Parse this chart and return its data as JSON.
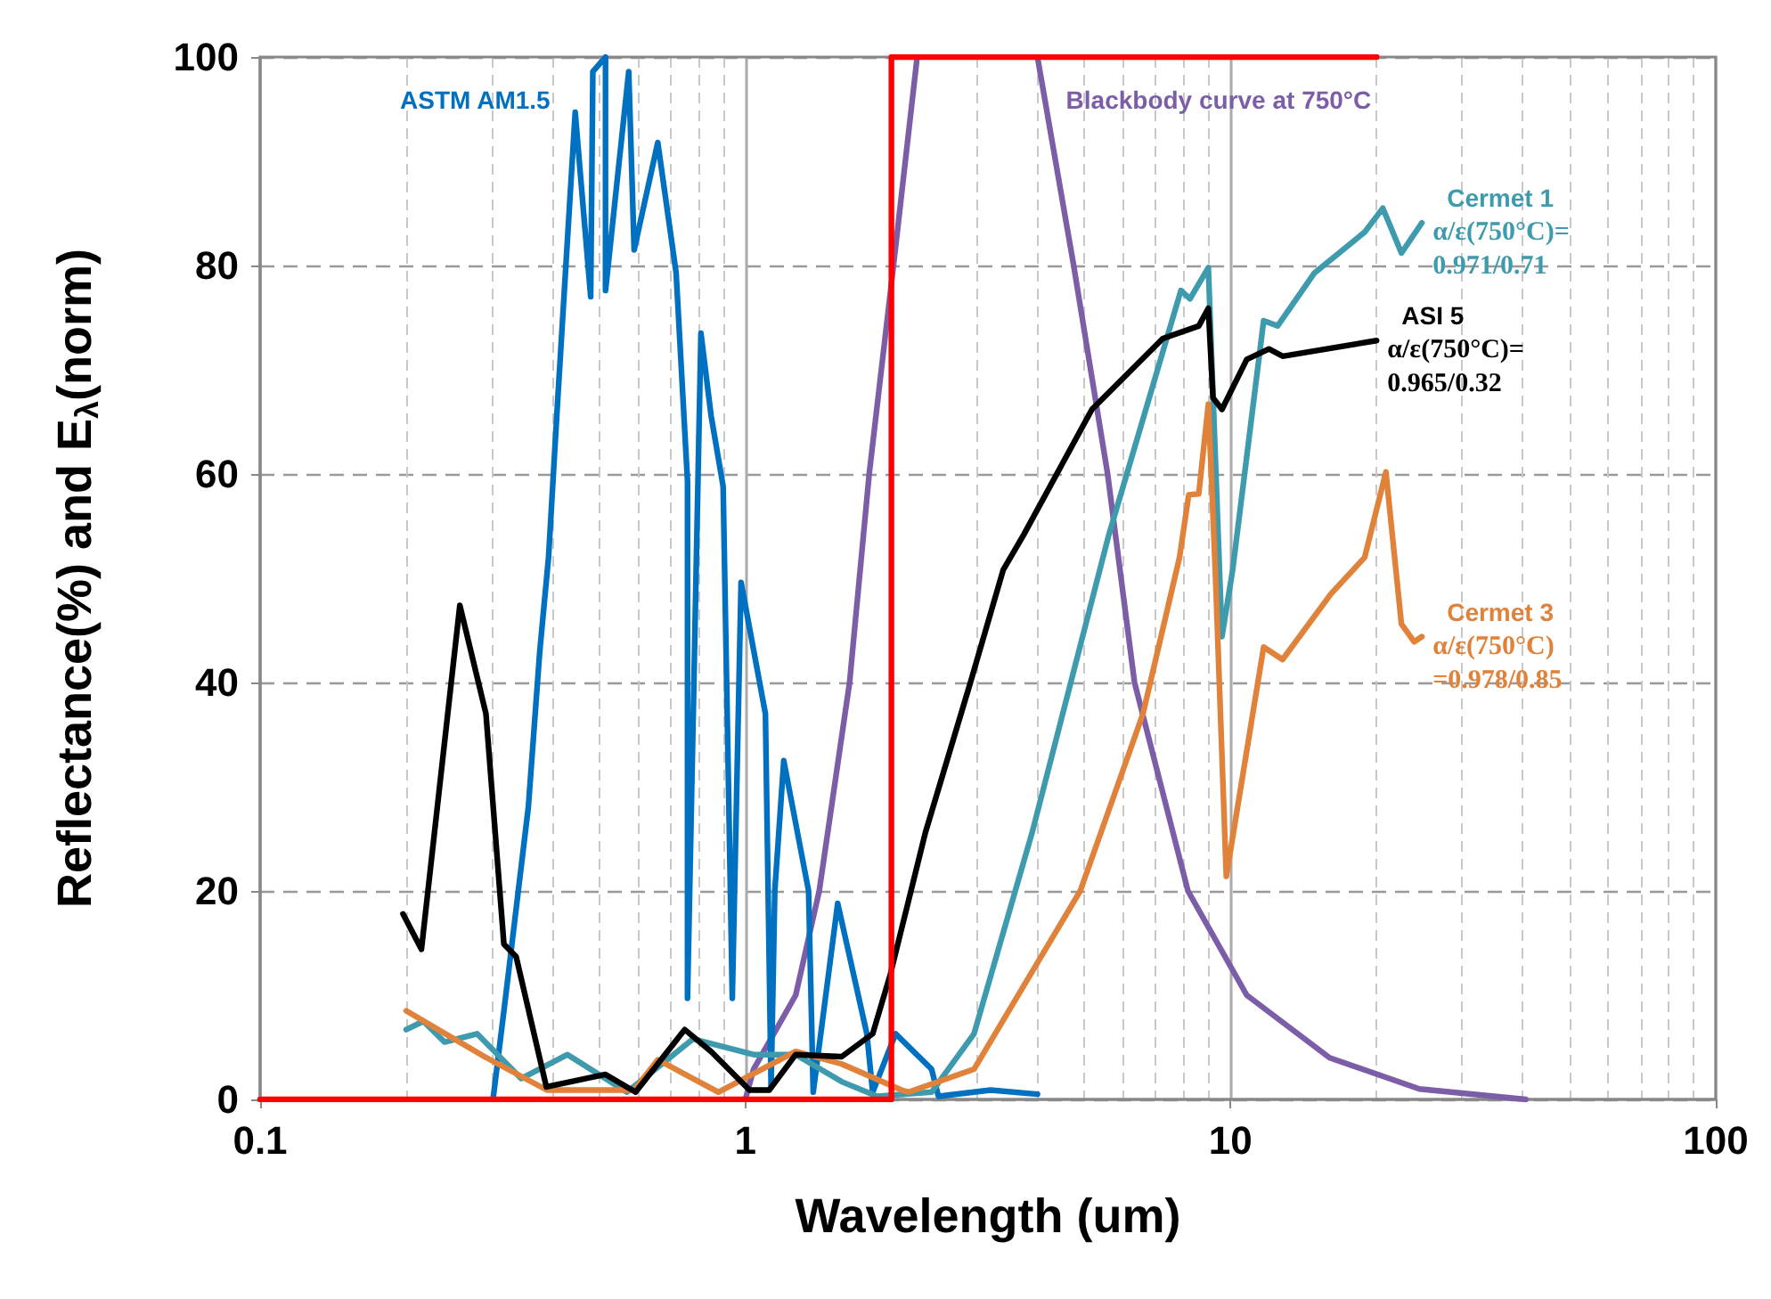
{
  "chart_data": {
    "type": "line",
    "xlabel": "Wavelength (um)",
    "ylabel": "Reflectance(%) and E$_{λ}$(norm)",
    "log": "x",
    "xlim": [
      0.1,
      100
    ],
    "xticks": [
      0.1,
      1,
      10,
      100
    ],
    "ylim": [
      0,
      100
    ],
    "yticks": [
      0,
      20,
      40,
      60,
      80,
      100
    ],
    "grid": true,
    "legend": false,
    "marker": "none",
    "line_style": "solid",
    "series": [
      {
        "name": "Blackbody curve at 750°C",
        "color": "#7b5ea7",
        "x": [
          1.0,
          1.04,
          1.27,
          1.42,
          1.64,
          1.8,
          2.02,
          2.26,
          3.0,
          4.0,
          4.75,
          5.58,
          6.34,
          8.17,
          10.8,
          16,
          24.5,
          40.6
        ],
        "values": [
          0,
          2.9,
          10,
          20,
          40,
          60,
          80,
          100,
          null,
          100,
          80,
          60,
          40,
          20,
          10,
          4,
          1,
          0
        ]
      },
      {
        "name": "ASTM AM1.5",
        "color": "#0070c0",
        "x": [
          0.302,
          0.318,
          0.357,
          0.377,
          0.393,
          0.41,
          0.446,
          0.48,
          0.485,
          0.515,
          0.515,
          0.575,
          0.59,
          0.66,
          0.72,
          0.76,
          0.76,
          0.81,
          0.85,
          0.9,
          0.94,
          0.98,
          1.1,
          1.13,
          1.15,
          1.2,
          1.35,
          1.38,
          1.55,
          1.78,
          1.83,
          2.04,
          2.42,
          2.5,
          3.2,
          4.0
        ],
        "values": [
          0,
          8.5,
          28,
          43,
          52,
          66.7,
          94.7,
          77,
          98.6,
          100,
          77.6,
          98.6,
          81.5,
          91.8,
          79.3,
          59.3,
          9.7,
          73.5,
          65.6,
          58.8,
          9.7,
          49.6,
          37,
          1.2,
          20,
          32.5,
          20,
          0.7,
          18.8,
          6.3,
          0.7,
          6.3,
          2.9,
          0.3,
          0.9,
          0.5
        ]
      },
      {
        "name": "Cermet 1",
        "color": "#3e9bad",
        "x": [
          0.2,
          0.217,
          0.24,
          0.28,
          0.345,
          0.43,
          0.57,
          0.78,
          1.04,
          1.27,
          1.58,
          1.87,
          2.42,
          2.96,
          3.9,
          5.6,
          7.9,
          8.25,
          9.0,
          9.6,
          10.1,
          11.7,
          12.5,
          14.9,
          18.9,
          20.6,
          22.5,
          24.8
        ],
        "values": [
          6.7,
          7.5,
          5.5,
          6.3,
          2,
          4.3,
          0.7,
          5.8,
          4.3,
          4.3,
          1.7,
          0.3,
          0.7,
          6.3,
          25.6,
          54,
          77.6,
          76.8,
          79.8,
          44.4,
          50.8,
          74.7,
          74.2,
          79.3,
          83.2,
          85.5,
          81.2,
          84.1
        ]
      },
      {
        "name": "Cermet 3",
        "color": "#e0823a",
        "x": [
          0.2,
          0.29,
          0.39,
          0.59,
          0.66,
          0.88,
          1.27,
          1.58,
          2.1,
          2.17,
          2.96,
          4.9,
          6.6,
          7.85,
          8.2,
          8.6,
          9.0,
          9.3,
          9.8,
          11.7,
          12.8,
          16.1,
          18.9,
          20.9,
          22.5,
          23.9,
          24.8
        ],
        "values": [
          8.5,
          4.1,
          0.9,
          0.9,
          3.8,
          0.7,
          4.6,
          3.4,
          0.9,
          0.7,
          2.9,
          20,
          37,
          52,
          58,
          58.1,
          66.7,
          50.8,
          21.4,
          43.4,
          42.2,
          48.5,
          52,
          60.2,
          45.6,
          43.9,
          44.4
        ]
      },
      {
        "name": "ASI 5",
        "color": "#000000",
        "x": [
          0.197,
          0.215,
          0.258,
          0.292,
          0.318,
          0.337,
          0.389,
          0.515,
          0.594,
          0.75,
          0.85,
          1.02,
          1.12,
          1.27,
          1.58,
          1.83,
          1.99,
          2.35,
          2.91,
          3.4,
          3.75,
          5.18,
          7.25,
          8.6,
          9.0,
          9.2,
          9.6,
          10.8,
          12,
          12.8,
          20
        ],
        "values": [
          17.8,
          14.4,
          47.4,
          37,
          14.9,
          13.7,
          1.2,
          2.4,
          0.7,
          6.7,
          4.6,
          0.9,
          0.9,
          4.3,
          4.1,
          6.3,
          12,
          25.6,
          40,
          50.8,
          54.2,
          66.2,
          73,
          74.2,
          75.9,
          67.3,
          66.2,
          71,
          72,
          71.3,
          72.8
        ]
      },
      {
        "color": "#ff0000",
        "x": [
          0.1,
          2,
          2,
          20
        ],
        "values": [
          0,
          0,
          100,
          100
        ]
      }
    ],
    "annotations": [
      "α/ε(750°C)=\n0.971/0.71",
      "α/ε(750°C)\n=0.978/0.85",
      "α/ε(750°C)=\n0.965/0.32"
    ]
  }
}
